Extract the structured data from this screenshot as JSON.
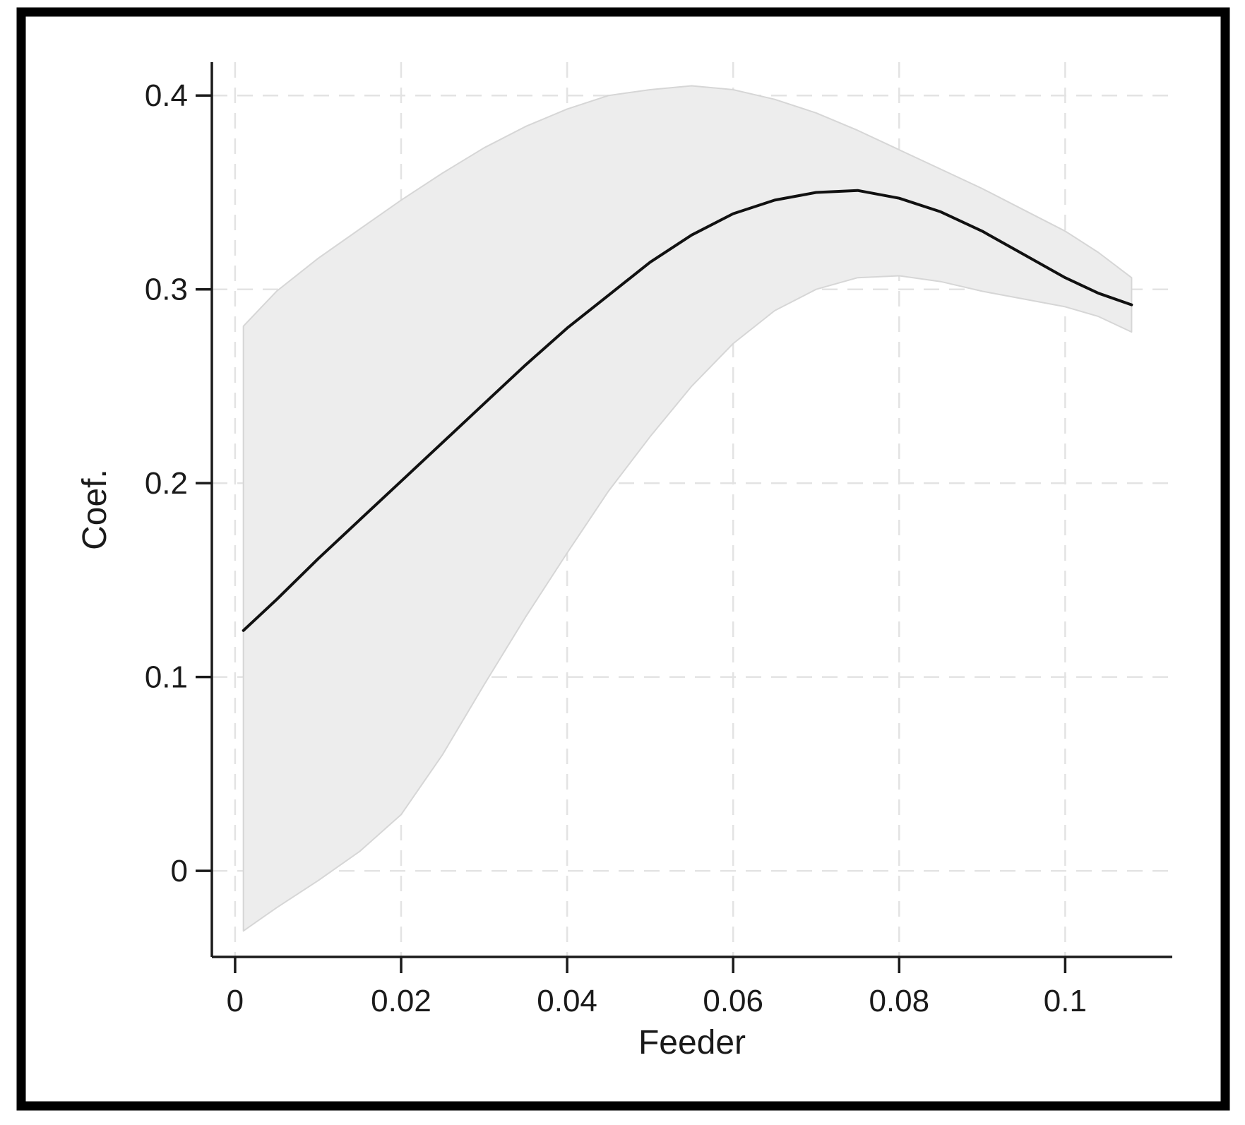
{
  "chart_data": {
    "type": "line",
    "title": "",
    "xlabel": "Feeder",
    "ylabel": "Coef.",
    "x": [
      0.001,
      0.005,
      0.01,
      0.015,
      0.02,
      0.025,
      0.03,
      0.035,
      0.04,
      0.045,
      0.05,
      0.055,
      0.06,
      0.065,
      0.07,
      0.075,
      0.08,
      0.085,
      0.09,
      0.095,
      0.1,
      0.104,
      0.108
    ],
    "series": [
      {
        "name": "coefficient",
        "values": [
          0.124,
          0.14,
          0.161,
          0.181,
          0.201,
          0.221,
          0.241,
          0.261,
          0.28,
          0.297,
          0.314,
          0.328,
          0.339,
          0.346,
          0.35,
          0.351,
          0.347,
          0.34,
          0.33,
          0.318,
          0.306,
          0.298,
          0.292
        ]
      },
      {
        "name": "ci_upper",
        "values": [
          0.281,
          0.299,
          0.316,
          0.331,
          0.346,
          0.36,
          0.373,
          0.384,
          0.393,
          0.4,
          0.403,
          0.405,
          0.403,
          0.398,
          0.391,
          0.382,
          0.372,
          0.362,
          0.352,
          0.341,
          0.33,
          0.319,
          0.306
        ]
      },
      {
        "name": "ci_lower",
        "values": [
          -0.031,
          -0.019,
          -0.005,
          0.01,
          0.029,
          0.06,
          0.096,
          0.131,
          0.164,
          0.196,
          0.224,
          0.25,
          0.272,
          0.289,
          0.3,
          0.306,
          0.307,
          0.304,
          0.299,
          0.295,
          0.291,
          0.286,
          0.278
        ]
      }
    ],
    "x_ticks": {
      "values": [
        0,
        0.02,
        0.04,
        0.06,
        0.08,
        0.1
      ],
      "labels": [
        "0",
        "0.02",
        "0.04",
        "0.06",
        "0.08",
        "0.1"
      ]
    },
    "y_ticks": {
      "values": [
        0,
        0.1,
        0.2,
        0.3,
        0.4
      ],
      "labels": [
        "0",
        "0.1",
        "0.2",
        "0.3",
        "0.4"
      ]
    },
    "xlim": [
      -0.0028,
      0.1129
    ],
    "ylim": [
      -0.0444,
      0.4172
    ],
    "grid": true,
    "legend": "none",
    "colors": {
      "line": "#111111",
      "band_fill": "#ededed",
      "band_edge": "#d6d6d6",
      "grid": "#e3e3e3",
      "axis": "#1a1a1a",
      "text": "#1a1a1a",
      "frame": "#000000",
      "background": "#ffffff"
    }
  }
}
